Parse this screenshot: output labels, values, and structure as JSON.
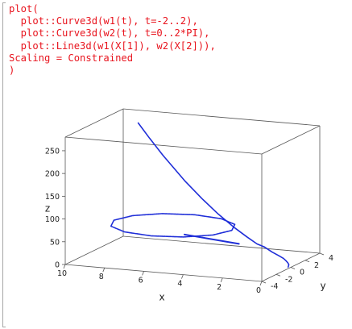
{
  "code_input": {
    "lines": [
      "plot(",
      "  plot::Curve3d(w1(t), t=-2..2),",
      "  plot::Curve3d(w2(t), t=0..2*PI),",
      "  plot::Line3d(w1(X[1]), w2(X[2])),",
      "Scaling = Constrained",
      ")"
    ]
  },
  "colors": {
    "code_text": "#e8141e",
    "curve": "#1f2ed8",
    "box": "#555555",
    "bracket": "#a6a6a6"
  },
  "chart_data": {
    "type": "line",
    "projection": "3d",
    "scaling": "Constrained",
    "xlabel": "x",
    "ylabel": "y",
    "zlabel": "z",
    "xlim": [
      0,
      10
    ],
    "ylim": [
      -4,
      4
    ],
    "zlim": [
      0,
      280
    ],
    "x_ticks": [
      "10",
      "8",
      "6",
      "4",
      "2",
      "0"
    ],
    "y_ticks": [
      "-4",
      "-2",
      "0",
      "2",
      "4"
    ],
    "z_ticks": [
      "0",
      "50",
      "100",
      "150",
      "200",
      "250"
    ],
    "series": [
      {
        "kind": "curve",
        "parameter_range": [
          -2,
          2
        ],
        "points": [
          [
            0.135,
            0,
            0.02
          ],
          [
            0.3,
            0.55,
            0.3
          ],
          [
            0.5,
            0.95,
            0.7
          ],
          [
            0.75,
            1.35,
            1.5
          ],
          [
            1.0,
            1.7,
            2.7
          ],
          [
            1.35,
            2.0,
            5.0
          ],
          [
            1.8,
            2.3,
            9.0
          ],
          [
            2.3,
            2.6,
            16.0
          ],
          [
            2.72,
            2.72,
            20.1
          ],
          [
            3.3,
            2.9,
            32.0
          ],
          [
            4.0,
            3.0,
            50.0
          ],
          [
            4.8,
            3.0,
            76.0
          ],
          [
            5.6,
            2.9,
            108.0
          ],
          [
            6.4,
            2.7,
            146.0
          ],
          [
            7.39,
            2.4,
            200.0
          ],
          [
            8.0,
            2.2,
            237.0
          ],
          [
            8.5,
            2.0,
            270.0
          ]
        ]
      },
      {
        "kind": "curve",
        "parameter_range": [
          0,
          6.2832
        ],
        "points": [
          [
            9.0,
            0.0,
            70.0
          ],
          [
            8.6,
            1.5,
            70.0
          ],
          [
            7.5,
            2.6,
            70.0
          ],
          [
            6.0,
            3.0,
            70.0
          ],
          [
            4.5,
            2.6,
            70.0
          ],
          [
            3.4,
            1.5,
            70.0
          ],
          [
            3.0,
            0.0,
            70.0
          ],
          [
            3.4,
            -1.5,
            70.0
          ],
          [
            4.5,
            -2.6,
            70.0
          ],
          [
            6.0,
            -3.0,
            70.0
          ],
          [
            7.5,
            -2.6,
            70.0
          ],
          [
            8.6,
            -1.5,
            70.0
          ],
          [
            9.0,
            0.0,
            70.0
          ]
        ]
      },
      {
        "kind": "segment",
        "points": [
          [
            4.6,
            -2.2,
            72.0
          ],
          [
            3.6,
            2.6,
            18.0
          ]
        ]
      }
    ]
  }
}
